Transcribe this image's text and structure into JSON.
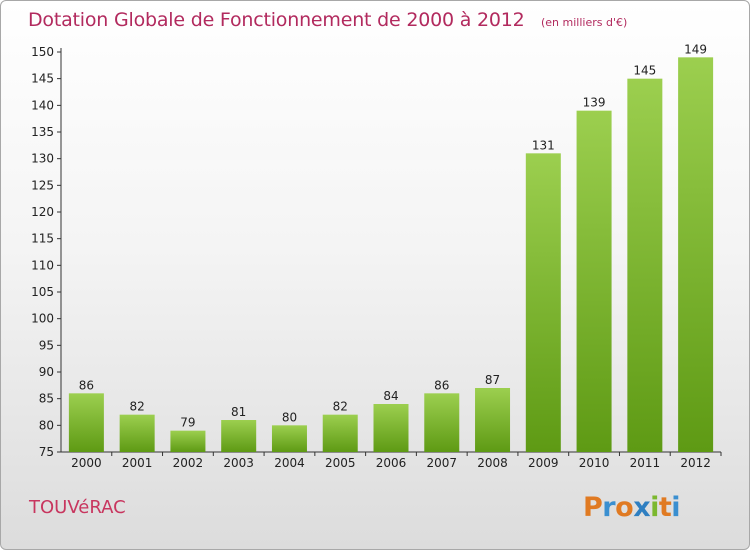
{
  "title": "Dotation Globale de Fonctionnement de 2000 à 2012",
  "subtitle": "(en milliers d'€)",
  "commune": "TOUVéRAC",
  "logo": {
    "text": "Proxiti",
    "letter_colors": [
      "#e07a22",
      "#3a8fd0",
      "#e07a22",
      "#2f7fc1",
      "#7cb82f",
      "#e07a22",
      "#3a8fd0"
    ]
  },
  "colors": {
    "title": "#b22a5e",
    "bar_light": "#9ccf4f",
    "bar_dark": "#5e9a14"
  },
  "chart_data": {
    "type": "bar",
    "categories": [
      "2000",
      "2001",
      "2002",
      "2003",
      "2004",
      "2005",
      "2006",
      "2007",
      "2008",
      "2009",
      "2010",
      "2011",
      "2012"
    ],
    "values": [
      86,
      82,
      79,
      81,
      80,
      82,
      84,
      86,
      87,
      131,
      139,
      145,
      149
    ],
    "title": "Dotation Globale de Fonctionnement de 2000 à 2012",
    "ylim": [
      75,
      150
    ],
    "yticks": [
      75,
      80,
      85,
      90,
      95,
      100,
      105,
      110,
      115,
      120,
      125,
      130,
      135,
      140,
      145,
      150
    ],
    "grid": false,
    "data_labels": true
  }
}
